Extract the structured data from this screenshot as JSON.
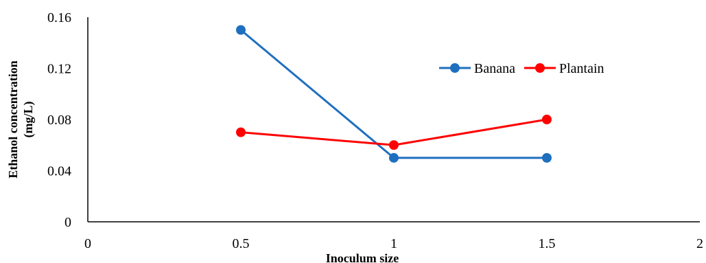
{
  "chart_data": {
    "type": "scatter",
    "xlabel": "Inoculum size",
    "ylabel_lines": [
      "Ethanol concentration",
      "(mg/L)"
    ],
    "xlim": [
      0,
      2
    ],
    "ylim": [
      0,
      0.16
    ],
    "x_ticks": [
      0,
      0.5,
      1,
      1.5,
      2
    ],
    "y_ticks": [
      0,
      0.04,
      0.08,
      0.12,
      0.16
    ],
    "x_tick_labels": [
      "0",
      "0.5",
      "1",
      "1.5",
      "2"
    ],
    "y_tick_labels": [
      "0",
      "0.04",
      "0.08",
      "0.12",
      "0.16"
    ],
    "grid": false,
    "legend_position": "top-right",
    "series": [
      {
        "name": "Banana",
        "color": "#1f6fbf",
        "x": [
          0.5,
          1,
          1.5
        ],
        "y": [
          0.15,
          0.05,
          0.05
        ]
      },
      {
        "name": "Plantain",
        "color": "#ff0000",
        "x": [
          0.5,
          1,
          1.5
        ],
        "y": [
          0.07,
          0.06,
          0.08
        ]
      }
    ]
  }
}
